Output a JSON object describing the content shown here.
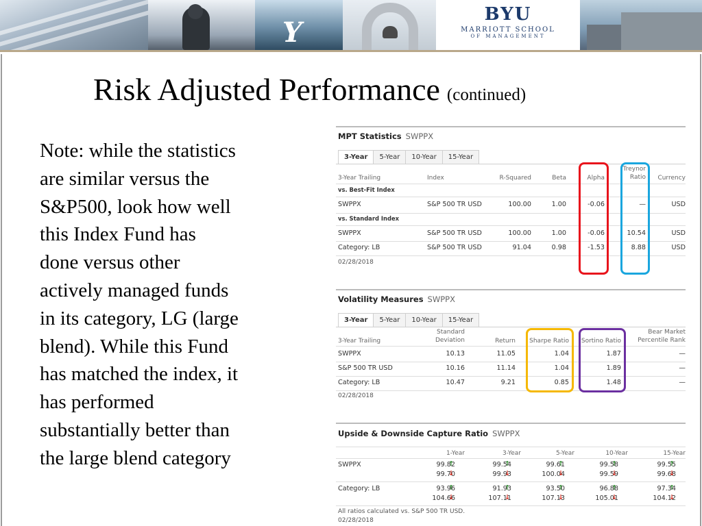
{
  "title": {
    "main": "Risk Adjusted Performance",
    "sub": "(continued)"
  },
  "note_lines": [
    "Note: while the statistics",
    "are similar versus the",
    "S&P500, look how well",
    "this Index Fund has",
    "done versus other",
    "actively managed funds",
    "in its category, LG (large",
    "blend).  While this Fund",
    "has matched the index, it",
    "has performed",
    "substantially better than",
    "the large blend category"
  ],
  "banner": {
    "byu": "BYU",
    "school": "MARRIOTT SCHOOL",
    "school_sub": "OF MANAGEMENT",
    "y_mark": "Y"
  },
  "colors": {
    "red_box": "#e8141c",
    "cyan_box": "#1aa6de",
    "yellow_box": "#f5b800",
    "purple_box": "#6b2fa0",
    "banner_rule": "#b9a88a"
  },
  "mpt": {
    "title": "MPT Statistics",
    "ticker": "SWPPX",
    "tabs": [
      "3-Year",
      "5-Year",
      "10-Year",
      "15-Year"
    ],
    "active_tab": "3-Year",
    "headers": {
      "trailing": "3-Year Trailing",
      "index": "Index",
      "rsq": "R-Squared",
      "beta": "Beta",
      "alpha": "Alpha",
      "treynor1": "Treynor",
      "treynor2": "Ratio",
      "currency": "Currency"
    },
    "best_fit_label": "vs. Best-Fit Index",
    "standard_label": "vs. Standard Index",
    "best_fit_rows": [
      {
        "name": "SWPPX",
        "index": "S&P 500 TR USD",
        "rsq": "100.00",
        "beta": "1.00",
        "alpha": "-0.06",
        "treynor": "—",
        "currency": "USD"
      }
    ],
    "standard_rows": [
      {
        "name": "SWPPX",
        "index": "S&P 500 TR USD",
        "rsq": "100.00",
        "beta": "1.00",
        "alpha": "-0.06",
        "treynor": "10.54",
        "currency": "USD"
      },
      {
        "name": "Category: LB",
        "index": "S&P 500 TR USD",
        "rsq": "91.04",
        "beta": "0.98",
        "alpha": "-1.53",
        "treynor": "8.88",
        "currency": "USD"
      }
    ],
    "date": "02/28/2018"
  },
  "vol": {
    "title": "Volatility Measures",
    "ticker": "SWPPX",
    "tabs": [
      "3-Year",
      "5-Year",
      "10-Year",
      "15-Year"
    ],
    "active_tab": "3-Year",
    "headers": {
      "trailing": "3-Year Trailing",
      "std1": "Standard",
      "std2": "Deviation",
      "ret": "Return",
      "sharpe": "Sharpe Ratio",
      "sortino": "Sortino Ratio",
      "bear1": "Bear Market",
      "bear2": "Percentile Rank"
    },
    "rows": [
      {
        "name": "SWPPX",
        "std": "10.13",
        "ret": "11.05",
        "sharpe": "1.04",
        "sortino": "1.87",
        "bear": "—"
      },
      {
        "name": "S&P 500 TR USD",
        "std": "10.16",
        "ret": "11.14",
        "sharpe": "1.04",
        "sortino": "1.89",
        "bear": "—"
      },
      {
        "name": "Category: LB",
        "std": "10.47",
        "ret": "9.21",
        "sharpe": "0.85",
        "sortino": "1.48",
        "bear": "—"
      }
    ],
    "date": "02/28/2018"
  },
  "capture": {
    "title": "Upside & Downside Capture Ratio",
    "ticker": "SWPPX",
    "periods": [
      "1-Year",
      "3-Year",
      "5-Year",
      "10-Year",
      "15-Year"
    ],
    "rows": [
      {
        "name": "SWPPX",
        "up": [
          "99.82",
          "99.54",
          "99.61",
          "99.58",
          "99.55"
        ],
        "down": [
          "99.70",
          "99.93",
          "100.04",
          "99.59",
          "99.68"
        ]
      },
      {
        "name": "Category: LB",
        "up": [
          "93.96",
          "91.93",
          "93.50",
          "96.88",
          "97.34"
        ],
        "down": [
          "104.66",
          "107.11",
          "107.13",
          "105.01",
          "104.12"
        ]
      }
    ],
    "footnote": "All ratios calculated vs. S&P 500 TR USD.",
    "date": "02/28/2018"
  },
  "arrows": {
    "up": "↑",
    "down": "↓"
  }
}
